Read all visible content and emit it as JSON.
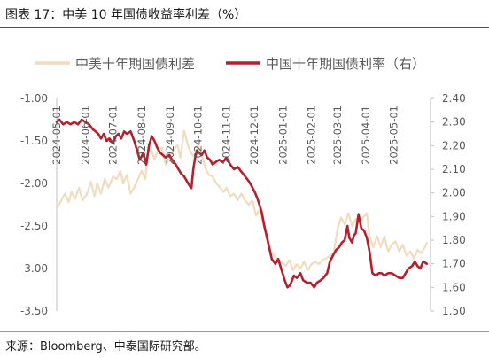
{
  "figure": {
    "title": "图表 17：中美 10 年国债收益率利差（%）",
    "source": "来源：Bloomberg、中泰国际研究部。"
  },
  "colors": {
    "spread": "#f0dcbf",
    "china": "#b51f2e",
    "accent_rule": "#b51f2e",
    "axis_text": "#595959"
  },
  "chart_data": {
    "type": "line",
    "title": "图表 17：中美 10 年国债收益率利差（%）",
    "legend_position": "top",
    "grid": false,
    "x_ticks": [
      "2024-05-01",
      "2024-06-01",
      "2024-07-01",
      "2024-08-01",
      "2024-09-01",
      "2024-10-01",
      "2024-11-01",
      "2024-12-01",
      "2025-01-01",
      "2025-02-01",
      "2025-03-01",
      "2025-04-01",
      "2025-05-01"
    ],
    "xlim": [
      "2024-05-01",
      "2025-06-10"
    ],
    "y_left": {
      "ylim": [
        -3.5,
        -1.0
      ],
      "ticks": [
        "-1.00",
        "-1.50",
        "-2.00",
        "-2.50",
        "-3.00",
        "-3.50"
      ]
    },
    "y_right": {
      "ylim": [
        1.5,
        2.4
      ],
      "ticks": [
        "2.40",
        "2.30",
        "2.20",
        "2.10",
        "2.00",
        "1.90",
        "1.80",
        "1.70",
        "1.60",
        "1.50"
      ]
    },
    "series": [
      {
        "name": "中美十年期国债利差",
        "axis": "left",
        "points": [
          [
            "2024-05-01",
            -2.3
          ],
          [
            "2024-05-06",
            -2.2
          ],
          [
            "2024-05-10",
            -2.12
          ],
          [
            "2024-05-14",
            -2.22
          ],
          [
            "2024-05-17",
            -2.1
          ],
          [
            "2024-05-21",
            -2.18
          ],
          [
            "2024-05-25",
            -2.05
          ],
          [
            "2024-05-29",
            -2.2
          ],
          [
            "2024-06-03",
            -2.12
          ],
          [
            "2024-06-07",
            -1.98
          ],
          [
            "2024-06-11",
            -2.15
          ],
          [
            "2024-06-14",
            -2.0
          ],
          [
            "2024-06-18",
            -2.12
          ],
          [
            "2024-06-22",
            -1.95
          ],
          [
            "2024-06-26",
            -2.05
          ],
          [
            "2024-07-01",
            -1.92
          ],
          [
            "2024-07-05",
            -1.95
          ],
          [
            "2024-07-09",
            -1.85
          ],
          [
            "2024-07-12",
            -2.0
          ],
          [
            "2024-07-16",
            -1.9
          ],
          [
            "2024-07-20",
            -2.12
          ],
          [
            "2024-07-24",
            -2.05
          ],
          [
            "2024-07-28",
            -1.95
          ],
          [
            "2024-08-01",
            -1.85
          ],
          [
            "2024-08-05",
            -1.95
          ],
          [
            "2024-08-08",
            -1.6
          ],
          [
            "2024-08-12",
            -1.62
          ],
          [
            "2024-08-15",
            -1.72
          ],
          [
            "2024-08-19",
            -1.6
          ],
          [
            "2024-08-23",
            -1.58
          ],
          [
            "2024-08-27",
            -1.78
          ],
          [
            "2024-09-01",
            -1.68
          ],
          [
            "2024-09-05",
            -1.6
          ],
          [
            "2024-09-09",
            -1.55
          ],
          [
            "2024-09-12",
            -1.7
          ],
          [
            "2024-09-16",
            -1.38
          ],
          [
            "2024-09-20",
            -1.55
          ],
          [
            "2024-09-24",
            -1.65
          ],
          [
            "2024-09-28",
            -1.7
          ],
          [
            "2024-10-01",
            -1.55
          ],
          [
            "2024-10-05",
            -1.65
          ],
          [
            "2024-10-09",
            -1.82
          ],
          [
            "2024-10-13",
            -1.9
          ],
          [
            "2024-10-17",
            -1.92
          ],
          [
            "2024-10-21",
            -2.0
          ],
          [
            "2024-10-25",
            -2.05
          ],
          [
            "2024-10-29",
            -2.1
          ],
          [
            "2024-11-01",
            -2.05
          ],
          [
            "2024-11-05",
            -2.15
          ],
          [
            "2024-11-09",
            -2.12
          ],
          [
            "2024-11-13",
            -2.2
          ],
          [
            "2024-11-17",
            -2.12
          ],
          [
            "2024-11-21",
            -2.2
          ],
          [
            "2024-11-25",
            -2.25
          ],
          [
            "2024-11-29",
            -2.2
          ],
          [
            "2024-12-03",
            -2.38
          ],
          [
            "2024-12-07",
            -2.3
          ],
          [
            "2024-12-11",
            -2.5
          ],
          [
            "2024-12-15",
            -2.62
          ],
          [
            "2024-12-19",
            -2.8
          ],
          [
            "2024-12-23",
            -2.85
          ],
          [
            "2024-12-27",
            -2.9
          ],
          [
            "2024-12-31",
            -2.92
          ],
          [
            "2025-01-04",
            -2.97
          ],
          [
            "2025-01-08",
            -2.9
          ],
          [
            "2025-01-12",
            -3.02
          ],
          [
            "2025-01-16",
            -2.95
          ],
          [
            "2025-01-20",
            -3.0
          ],
          [
            "2025-01-24",
            -2.92
          ],
          [
            "2025-01-28",
            -3.02
          ],
          [
            "2025-02-01",
            -2.95
          ],
          [
            "2025-02-05",
            -2.92
          ],
          [
            "2025-02-09",
            -2.95
          ],
          [
            "2025-02-13",
            -2.9
          ],
          [
            "2025-02-17",
            -2.88
          ],
          [
            "2025-02-21",
            -2.85
          ],
          [
            "2025-02-25",
            -2.82
          ],
          [
            "2025-03-01",
            -2.55
          ],
          [
            "2025-03-05",
            -2.4
          ],
          [
            "2025-03-09",
            -2.48
          ],
          [
            "2025-03-13",
            -2.35
          ],
          [
            "2025-03-17",
            -2.5
          ],
          [
            "2025-03-21",
            -2.42
          ],
          [
            "2025-03-25",
            -2.48
          ],
          [
            "2025-03-29",
            -2.4
          ],
          [
            "2025-04-02",
            -2.35
          ],
          [
            "2025-04-05",
            -2.62
          ],
          [
            "2025-04-09",
            -2.75
          ],
          [
            "2025-04-13",
            -2.62
          ],
          [
            "2025-04-17",
            -2.75
          ],
          [
            "2025-04-21",
            -2.62
          ],
          [
            "2025-04-25",
            -2.8
          ],
          [
            "2025-04-29",
            -2.72
          ],
          [
            "2025-05-03",
            -2.68
          ],
          [
            "2025-05-07",
            -2.8
          ],
          [
            "2025-05-11",
            -2.72
          ],
          [
            "2025-05-15",
            -2.85
          ],
          [
            "2025-05-19",
            -2.8
          ],
          [
            "2025-05-23",
            -2.88
          ],
          [
            "2025-05-27",
            -2.78
          ],
          [
            "2025-05-31",
            -2.82
          ],
          [
            "2025-06-04",
            -2.75
          ],
          [
            "2025-06-06",
            -2.7
          ]
        ]
      },
      {
        "name": "中国十年期国债利率（右）",
        "axis": "right",
        "points": [
          [
            "2024-05-01",
            2.3
          ],
          [
            "2024-05-04",
            2.31
          ],
          [
            "2024-05-08",
            2.29
          ],
          [
            "2024-05-12",
            2.3
          ],
          [
            "2024-05-16",
            2.29
          ],
          [
            "2024-05-20",
            2.3
          ],
          [
            "2024-05-24",
            2.29
          ],
          [
            "2024-05-28",
            2.31
          ],
          [
            "2024-06-01",
            2.3
          ],
          [
            "2024-06-05",
            2.29
          ],
          [
            "2024-06-09",
            2.27
          ],
          [
            "2024-06-12",
            2.26
          ],
          [
            "2024-06-15",
            2.25
          ],
          [
            "2024-06-18",
            2.23
          ],
          [
            "2024-06-21",
            2.25
          ],
          [
            "2024-06-24",
            2.22
          ],
          [
            "2024-06-27",
            2.23
          ],
          [
            "2024-07-01",
            2.21
          ],
          [
            "2024-07-04",
            2.24
          ],
          [
            "2024-07-07",
            2.25
          ],
          [
            "2024-07-10",
            2.23
          ],
          [
            "2024-07-13",
            2.26
          ],
          [
            "2024-07-16",
            2.25
          ],
          [
            "2024-07-20",
            2.26
          ],
          [
            "2024-07-24",
            2.22
          ],
          [
            "2024-07-27",
            2.18
          ],
          [
            "2024-07-30",
            2.14
          ],
          [
            "2024-08-03",
            2.17
          ],
          [
            "2024-08-06",
            2.12
          ],
          [
            "2024-08-09",
            2.2
          ],
          [
            "2024-08-12",
            2.24
          ],
          [
            "2024-08-15",
            2.22
          ],
          [
            "2024-08-18",
            2.19
          ],
          [
            "2024-08-21",
            2.17
          ],
          [
            "2024-08-24",
            2.16
          ],
          [
            "2024-08-27",
            2.15
          ],
          [
            "2024-08-31",
            2.16
          ],
          [
            "2024-09-03",
            2.14
          ],
          [
            "2024-09-07",
            2.12
          ],
          [
            "2024-09-10",
            2.1
          ],
          [
            "2024-09-13",
            2.08
          ],
          [
            "2024-09-16",
            2.07
          ],
          [
            "2024-09-19",
            2.05
          ],
          [
            "2024-09-22",
            2.03
          ],
          [
            "2024-09-24",
            2.02
          ],
          [
            "2024-09-26",
            2.1
          ],
          [
            "2024-09-28",
            2.15
          ],
          [
            "2024-09-30",
            2.18
          ],
          [
            "2024-10-02",
            2.17
          ],
          [
            "2024-10-05",
            2.16
          ],
          [
            "2024-10-08",
            2.18
          ],
          [
            "2024-10-11",
            2.15
          ],
          [
            "2024-10-14",
            2.14
          ],
          [
            "2024-10-17",
            2.12
          ],
          [
            "2024-10-20",
            2.13
          ],
          [
            "2024-10-24",
            2.14
          ],
          [
            "2024-10-28",
            2.13
          ],
          [
            "2024-11-01",
            2.15
          ],
          [
            "2024-11-05",
            2.12
          ],
          [
            "2024-11-09",
            2.1
          ],
          [
            "2024-11-13",
            2.11
          ],
          [
            "2024-11-17",
            2.09
          ],
          [
            "2024-11-21",
            2.07
          ],
          [
            "2024-11-25",
            2.05
          ],
          [
            "2024-11-28",
            2.03
          ],
          [
            "2024-12-02",
            2.0
          ],
          [
            "2024-12-05",
            1.97
          ],
          [
            "2024-12-09",
            1.92
          ],
          [
            "2024-12-12",
            1.86
          ],
          [
            "2024-12-16",
            1.79
          ],
          [
            "2024-12-20",
            1.72
          ],
          [
            "2024-12-24",
            1.7
          ],
          [
            "2024-12-27",
            1.72
          ],
          [
            "2024-12-31",
            1.67
          ],
          [
            "2025-01-03",
            1.63
          ],
          [
            "2025-01-06",
            1.6
          ],
          [
            "2025-01-09",
            1.61
          ],
          [
            "2025-01-13",
            1.65
          ],
          [
            "2025-01-16",
            1.64
          ],
          [
            "2025-01-20",
            1.66
          ],
          [
            "2025-01-23",
            1.63
          ],
          [
            "2025-01-27",
            1.62
          ],
          [
            "2025-01-31",
            1.62
          ],
          [
            "2025-02-04",
            1.6
          ],
          [
            "2025-02-07",
            1.62
          ],
          [
            "2025-02-11",
            1.63
          ],
          [
            "2025-02-14",
            1.64
          ],
          [
            "2025-02-18",
            1.66
          ],
          [
            "2025-02-21",
            1.71
          ],
          [
            "2025-02-25",
            1.74
          ],
          [
            "2025-02-28",
            1.76
          ],
          [
            "2025-03-03",
            1.77
          ],
          [
            "2025-03-06",
            1.79
          ],
          [
            "2025-03-09",
            1.8
          ],
          [
            "2025-03-12",
            1.86
          ],
          [
            "2025-03-14",
            1.81
          ],
          [
            "2025-03-17",
            1.79
          ],
          [
            "2025-03-19",
            1.82
          ],
          [
            "2025-03-21",
            1.83
          ],
          [
            "2025-03-24",
            1.91
          ],
          [
            "2025-03-27",
            1.85
          ],
          [
            "2025-03-30",
            1.84
          ],
          [
            "2025-04-02",
            1.81
          ],
          [
            "2025-04-05",
            1.75
          ],
          [
            "2025-04-08",
            1.66
          ],
          [
            "2025-04-12",
            1.65
          ],
          [
            "2025-04-15",
            1.66
          ],
          [
            "2025-04-18",
            1.66
          ],
          [
            "2025-04-21",
            1.65
          ],
          [
            "2025-04-25",
            1.66
          ],
          [
            "2025-04-29",
            1.66
          ],
          [
            "2025-05-03",
            1.65
          ],
          [
            "2025-05-07",
            1.64
          ],
          [
            "2025-05-11",
            1.64
          ],
          [
            "2025-05-14",
            1.66
          ],
          [
            "2025-05-17",
            1.68
          ],
          [
            "2025-05-21",
            1.69
          ],
          [
            "2025-05-24",
            1.71
          ],
          [
            "2025-05-27",
            1.69
          ],
          [
            "2025-05-30",
            1.68
          ],
          [
            "2025-06-02",
            1.71
          ],
          [
            "2025-06-06",
            1.7
          ]
        ]
      }
    ]
  }
}
